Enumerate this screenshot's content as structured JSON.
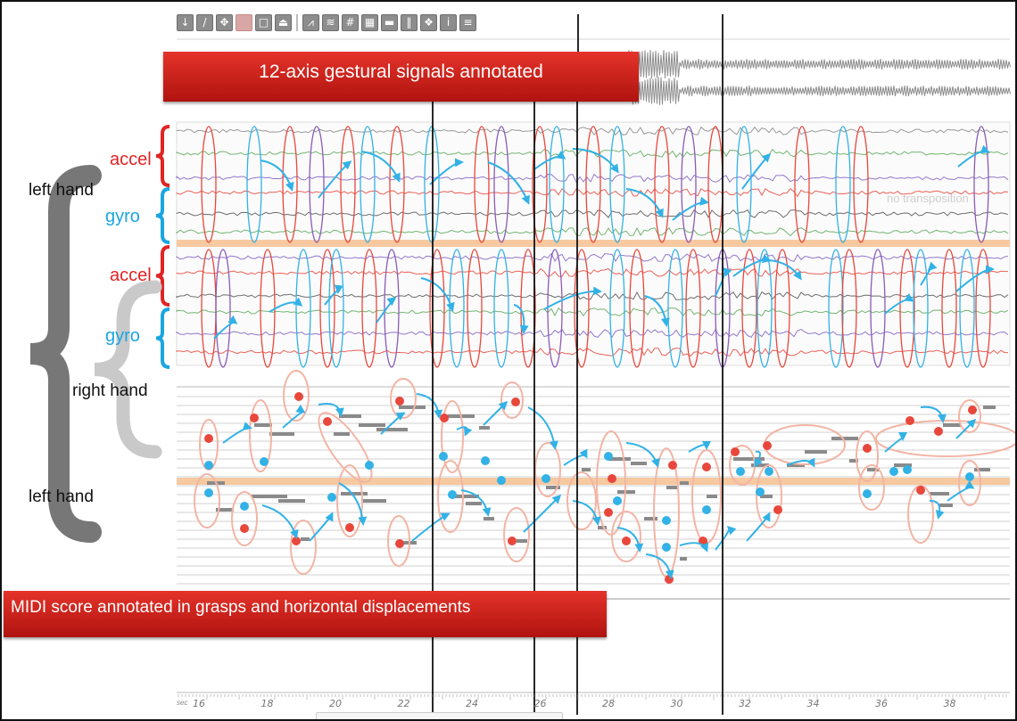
{
  "toolbar": {
    "buttons": [
      {
        "glyph": "↓",
        "name": "cursor-tool-icon"
      },
      {
        "glyph": "/",
        "name": "pencil-tool-icon"
      },
      {
        "glyph": "✥",
        "name": "move-tool-icon"
      },
      {
        "glyph": "",
        "name": "record-tool-icon"
      },
      {
        "glyph": "□",
        "name": "window-icon"
      },
      {
        "glyph": "⏏",
        "name": "lock-icon"
      },
      {
        "glyph": "⩘",
        "name": "waveform-icon"
      },
      {
        "glyph": "≋",
        "name": "layers-icon"
      },
      {
        "glyph": "#",
        "name": "grid-icon"
      },
      {
        "glyph": "▦",
        "name": "spectrogram-icon"
      },
      {
        "glyph": "▬",
        "name": "timeline-icon"
      },
      {
        "glyph": "‖",
        "name": "split-icon"
      },
      {
        "glyph": "❖",
        "name": "plugin-icon"
      },
      {
        "glyph": "i",
        "name": "info-icon"
      },
      {
        "glyph": "≡",
        "name": "menu-icon"
      }
    ]
  },
  "banners": {
    "top": "12-axis gestural signals annotated",
    "bottom": "MIDI score annotated in grasps and horizontal displacements"
  },
  "labels": {
    "accel_top": "accel",
    "gyro_top": "gyro",
    "accel_bottom": "accel",
    "gyro_bottom": "gyro",
    "left_hand_top": "left hand",
    "right_hand": "right hand",
    "left_hand_bottom": "left hand",
    "ghost": "no transposition"
  },
  "timeline": {
    "unit": "sec",
    "ticks": [
      "16",
      "18",
      "20",
      "22",
      "24",
      "26",
      "28",
      "30",
      "32",
      "34",
      "36",
      "38"
    ]
  },
  "colors": {
    "accent_red": "#e02424",
    "accent_blue": "#1aa6e0",
    "divider_orange": "#f7c9a0",
    "grasp_outline": "#f2b5a5",
    "gesture_red": "#e8473c",
    "gesture_blue": "#32b2e6",
    "gesture_purple": "#8b5bb5",
    "signal_green": "#5aa85a",
    "signal_purple": "#7f62c2",
    "signal_gray": "#555555"
  }
}
